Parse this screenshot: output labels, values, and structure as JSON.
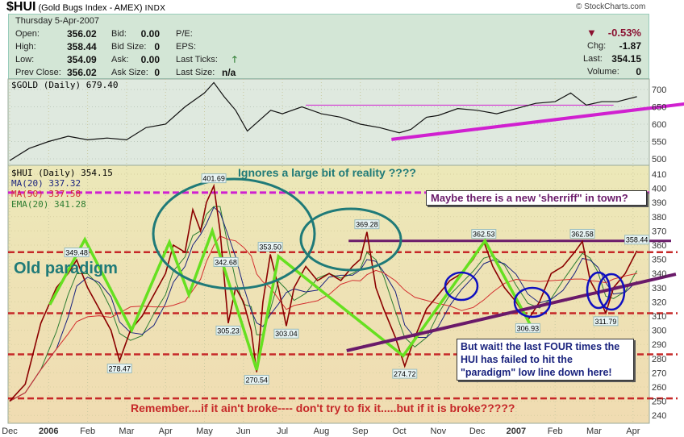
{
  "header": {
    "symbol": "$HUI",
    "name": "(Gold Bugs Index - AMEX)",
    "exchange": "INDX",
    "credit": "© StockCharts.com"
  },
  "info": {
    "date": "Thursday  5-Apr-2007",
    "rows": [
      {
        "label": "Open:",
        "value": "356.02",
        "l2": "Bid:",
        "v2": "0.00",
        "l3": "P/E:",
        "v3": ""
      },
      {
        "label": "High:",
        "value": "358.44",
        "l2": "Bid Size:",
        "v2": "0",
        "l3": "EPS:",
        "v3": ""
      },
      {
        "label": "Low:",
        "value": "354.09",
        "l2": "Ask:",
        "v2": "0.00",
        "l3": "Last Ticks:",
        "v3": ""
      },
      {
        "label": "Prev Close:",
        "value": "356.02",
        "l2": "Ask Size:",
        "v2": "0",
        "l3": "Last Size:",
        "v3": "n/a"
      }
    ],
    "change_pct": "-0.53%",
    "chg_label": "Chg:",
    "chg": "-1.87",
    "last_label": "Last:",
    "last": "354.15",
    "volume_label": "Volume:",
    "volume": "0",
    "colors": {
      "down": "#8a1030",
      "up": "#2e7d32"
    }
  },
  "chart_data": [
    {
      "type": "line",
      "title": "$GOLD (Daily) 679.40",
      "ylim": [
        480,
        720
      ],
      "yticks": [
        500,
        550,
        600,
        650,
        700
      ],
      "x_unit": "months since Dec 2005",
      "x": [
        0,
        0.5,
        1,
        1.5,
        2,
        2.5,
        3,
        3.5,
        4,
        4.5,
        5,
        5.24,
        5.5,
        5.8,
        6.1,
        6.4,
        6.7,
        7,
        7.5,
        8,
        8.5,
        9,
        9.5,
        10,
        10.3,
        10.7,
        11,
        11.5,
        12,
        12.5,
        13,
        13.5,
        14,
        14.4,
        14.8,
        15.2,
        15.6,
        16.1
      ],
      "values": [
        495,
        530,
        550,
        565,
        555,
        560,
        555,
        590,
        600,
        650,
        690,
        720,
        680,
        640,
        580,
        610,
        640,
        630,
        650,
        630,
        620,
        600,
        590,
        575,
        585,
        620,
        625,
        645,
        640,
        630,
        645,
        660,
        665,
        690,
        655,
        665,
        665,
        679.4
      ],
      "annotations": {
        "resistance_level": 655,
        "trendline": [
          [
            9.8,
            556
          ],
          [
            17.45,
            660
          ]
        ]
      }
    },
    {
      "type": "line",
      "title": "$HUI (Daily) 354.15",
      "legend": [
        "MA(20) 337.32",
        "MA(50) 337.58",
        "EMA(20) 341.28"
      ],
      "legend_colors": [
        "#1a237e",
        "#d32f2f",
        "#2e7d32"
      ],
      "ylim": [
        235,
        415
      ],
      "yticks": [
        240,
        250,
        260,
        270,
        280,
        290,
        300,
        310,
        320,
        330,
        340,
        350,
        360,
        370,
        380,
        390,
        400,
        410
      ],
      "xticks": [
        "Dec",
        "2006",
        "Feb",
        "Mar",
        "Apr",
        "May",
        "Jun",
        "Jul",
        "Aug",
        "Sep",
        "Oct",
        "Nov",
        "Dec",
        "2007",
        "Feb",
        "Mar",
        "Apr"
      ],
      "x": [
        0,
        0.4,
        0.8,
        1.2,
        1.5,
        1.72,
        2,
        2.3,
        2.6,
        2.82,
        3.1,
        3.4,
        3.7,
        4,
        4.2,
        4.5,
        4.7,
        4.9,
        5.05,
        5.24,
        5.4,
        5.61,
        5.8,
        6,
        6.2,
        6.34,
        6.5,
        6.69,
        6.9,
        7.1,
        7.3,
        7.6,
        7.9,
        8.2,
        8.5,
        8.8,
        9,
        9.17,
        9.4,
        9.6,
        9.9,
        10.14,
        10.4,
        10.7,
        11,
        11.3,
        11.6,
        11.9,
        12.17,
        12.4,
        12.7,
        13,
        13.3,
        13.6,
        13.9,
        14.2,
        14.5,
        14.7,
        14.9,
        15.1,
        15.3,
        15.5,
        15.8,
        16.1
      ],
      "values": [
        250,
        262,
        305,
        330,
        340,
        349.5,
        330,
        315,
        300,
        278.5,
        300,
        310,
        325,
        340,
        360,
        355,
        385,
        370,
        390,
        401.7,
        370,
        305,
        330,
        320,
        300,
        270.5,
        320,
        353.5,
        330,
        303,
        330,
        345,
        335,
        340,
        335,
        345,
        350,
        369.3,
        330,
        315,
        295,
        274.7,
        295,
        315,
        325,
        335,
        340,
        350,
        362.5,
        345,
        330,
        320,
        307,
        320,
        340,
        345,
        355,
        362.6,
        335,
        325,
        312,
        330,
        340,
        356
      ],
      "price_labels": [
        {
          "text": "401.69",
          "m": 5.24,
          "v": 401.69
        },
        {
          "text": "349.48",
          "m": 1.72,
          "v": 349.48
        },
        {
          "text": "278.47",
          "m": 2.82,
          "v": 278.47
        },
        {
          "text": "342.68",
          "m": 5.55,
          "v": 342.68
        },
        {
          "text": "305.23",
          "m": 5.61,
          "v": 305.23
        },
        {
          "text": "270.54",
          "m": 6.34,
          "v": 270.54
        },
        {
          "text": "353.50",
          "m": 6.69,
          "v": 353.5
        },
        {
          "text": "303.04",
          "m": 7.1,
          "v": 303.04
        },
        {
          "text": "369.28",
          "m": 9.17,
          "v": 369.28
        },
        {
          "text": "274.72",
          "m": 10.14,
          "v": 274.72
        },
        {
          "text": "362.53",
          "m": 12.17,
          "v": 362.53
        },
        {
          "text": "306.93",
          "m": 13.3,
          "v": 306.93
        },
        {
          "text": "362.58",
          "m": 14.7,
          "v": 362.58
        },
        {
          "text": "311.79",
          "m": 15.3,
          "v": 311.79
        },
        {
          "text": "358.44",
          "m": 16.1,
          "v": 358.44
        }
      ],
      "levels": {
        "magenta": 397,
        "red": [
          355,
          312,
          283,
          252
        ],
        "purple_resistance": 363
      },
      "trendline": [
        [
          8.65,
          285.6
        ],
        [
          17.1,
          339.5
        ]
      ],
      "zigzag": [
        [
          1.03,
          318
        ],
        [
          1.93,
          364
        ],
        [
          3.13,
          300
        ],
        [
          4.1,
          362
        ],
        [
          4.6,
          325
        ],
        [
          5.2,
          370
        ],
        [
          6.34,
          272
        ],
        [
          6.9,
          352
        ],
        [
          7.9,
          330
        ],
        [
          10.1,
          282
        ],
        [
          12.2,
          363
        ],
        [
          13.4,
          302
        ]
      ],
      "notes": {
        "ignores": "Ignores a large bit of reality ????",
        "old_paradigm": "Old paradigm",
        "sheriff": "Maybe there is a new 'sherriff\" in town?",
        "but_wait": "But wait! the last FOUR times the HUI has failed to hit the \"paradigm\" low line down here!",
        "remember": "Remember....if it ain't broke---- don't try to fix it.....but if it is broke?????"
      }
    }
  ]
}
